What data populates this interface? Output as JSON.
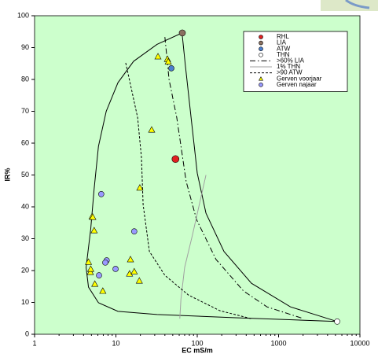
{
  "chart_data": {
    "type": "scatter",
    "x_label": "EC mS/m",
    "y_label": "IR%",
    "xscale": "log",
    "xlim": [
      1,
      10000
    ],
    "xticks": [
      1,
      10,
      100,
      1000,
      10000
    ],
    "ylim": [
      0,
      100
    ],
    "yticks": [
      0,
      10,
      20,
      30,
      40,
      50,
      60,
      70,
      80,
      90,
      100
    ],
    "background": "#ccffcc",
    "legend": "upper right",
    "envelope": {
      "color": "#000000",
      "x": [
        5250,
        297,
        32,
        10.6,
        6.1,
        4.6,
        4.3,
        4.9,
        5.4,
        6.1,
        7.6,
        10.6,
        16.5,
        32,
        65,
        71,
        84,
        100,
        128,
        213,
        464,
        1400,
        5250
      ],
      "values": [
        4,
        5.2,
        6.2,
        7.2,
        9.9,
        14.8,
        21,
        33,
        45.7,
        59,
        70,
        79,
        85.7,
        91,
        94.6,
        85,
        68,
        50.6,
        38,
        26,
        16,
        8.6,
        4
      ]
    },
    "series": [
      {
        "name": "RHL",
        "type": "scatter",
        "marker": "circle",
        "color": "#e02020",
        "size": 4.5,
        "x": [
          54
        ],
        "values": [
          55
        ]
      },
      {
        "name": "LIA",
        "type": "scatter",
        "marker": "circle",
        "color": "#8b7060",
        "size": 4,
        "x": [
          65.5
        ],
        "values": [
          94.6
        ]
      },
      {
        "name": "ATW",
        "type": "scatter",
        "marker": "circle",
        "color": "#4a7fd0",
        "size": 3.5,
        "x": [
          48
        ],
        "values": [
          83.5
        ]
      },
      {
        "name": "THN",
        "type": "scatter",
        "marker": "circle",
        "color": "#ffffff",
        "size": 3.5,
        "x": [
          5250
        ],
        "values": [
          4
        ]
      },
      {
        "name": ">60% LIA",
        "type": "line",
        "style": "dashdot",
        "color": "#000000",
        "x": [
          40,
          45,
          56,
          73,
          98,
          170,
          370,
          720,
          1970
        ],
        "values": [
          93.3,
          80,
          68,
          48,
          36,
          23.5,
          13.6,
          8.6,
          5
        ]
      },
      {
        "name": "1% THN",
        "type": "line",
        "style": "solid",
        "color": "#a0a0a0",
        "x": [
          128,
          87,
          70,
          63,
          61
        ],
        "values": [
          50,
          31,
          21,
          11,
          4.9
        ]
      },
      {
        "name": ">90 ATW",
        "type": "line",
        "style": "dashed",
        "color": "#000000",
        "x": [
          13.2,
          18.5,
          20.6,
          21.6,
          25.8,
          40,
          78,
          190,
          460
        ],
        "values": [
          85.2,
          68,
          55.5,
          40.7,
          26,
          18.5,
          12.3,
          7.4,
          4.9
        ]
      },
      {
        "name": "Gerven voorjaar",
        "type": "scatter",
        "marker": "triangle",
        "color": "#ffff00",
        "size": 4,
        "x": [
          32.9,
          43,
          44,
          27.5,
          19.7,
          5.1,
          5.2,
          5.4,
          4.6,
          4.85,
          4.9,
          5.5,
          6.9,
          15.1,
          14.7,
          16.8,
          19.4
        ],
        "values": [
          87.2,
          86.4,
          85.6,
          64.2,
          46,
          37,
          36.8,
          32.6,
          22.7,
          19.5,
          20.5,
          15.8,
          13.6,
          23.5,
          19,
          19.7,
          16.8
        ]
      },
      {
        "name": "Gerven najaar",
        "type": "scatter",
        "marker": "circle",
        "color": "#9999ff",
        "size": 3.5,
        "x": [
          6.6,
          16.8,
          7.7,
          7.4,
          9.9,
          6.2
        ],
        "values": [
          44,
          32.3,
          23.2,
          22.5,
          20.5,
          18.5
        ]
      }
    ]
  }
}
